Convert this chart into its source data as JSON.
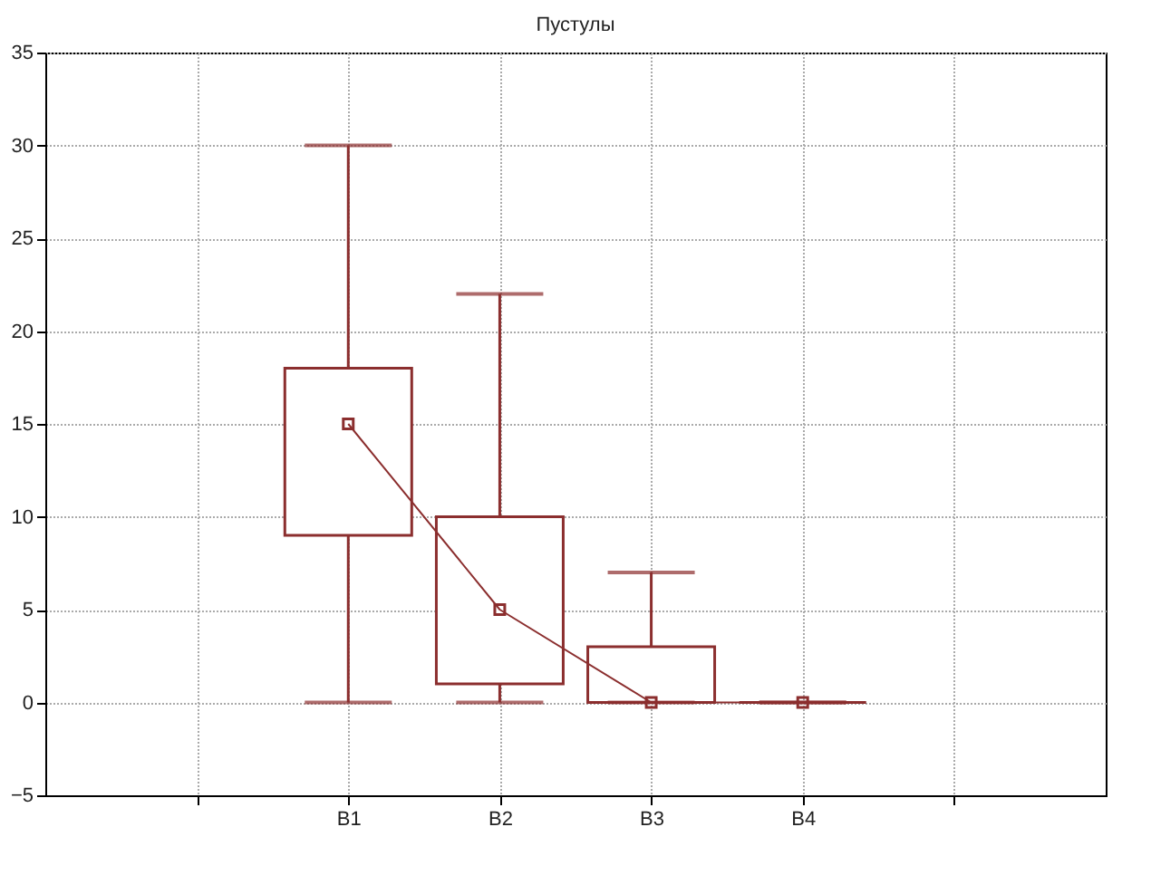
{
  "chart_data": {
    "type": "box",
    "title": "Пустулы",
    "categories": [
      null,
      "B1",
      "B2",
      "B3",
      "B4",
      null
    ],
    "series": [
      {
        "color": "#8b2e2e",
        "marker": "square",
        "boxes": [
          null,
          {
            "low": 0,
            "q1": 9,
            "median": 15,
            "q3": 18,
            "high": 30
          },
          {
            "low": 0,
            "q1": 1,
            "median": 5,
            "q3": 10,
            "high": 22
          },
          {
            "low": 0,
            "q1": 0,
            "median": 0,
            "q3": 3,
            "high": 7
          },
          {
            "low": 0,
            "q1": 0,
            "median": 0,
            "q3": 0,
            "high": 0
          },
          null
        ]
      },
      {
        "type": "line",
        "color": "#8b2e2e",
        "values": [
          null,
          15,
          5,
          0,
          0,
          null
        ]
      }
    ],
    "ylim": [
      -5,
      35
    ],
    "yticks": [
      -5,
      0,
      5,
      10,
      15,
      20,
      25,
      30,
      35
    ],
    "grid": true
  }
}
